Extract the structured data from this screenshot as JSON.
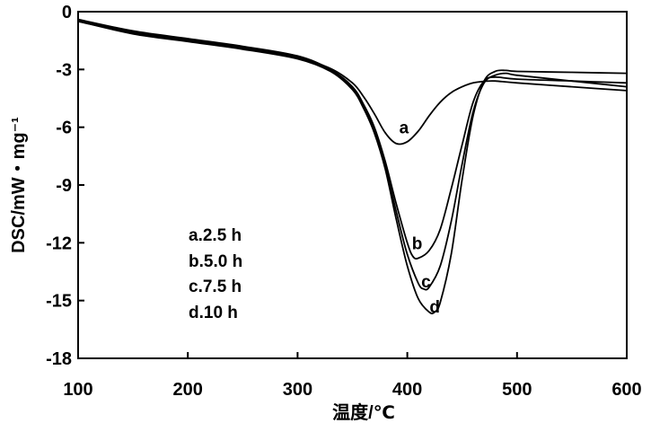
{
  "chart_data": {
    "type": "line",
    "xlabel": "温度/℃",
    "ylabel": "DSC/mW・mg⁻¹",
    "xlim": [
      100,
      600
    ],
    "ylim": [
      -18,
      0
    ],
    "xticks": [
      100,
      200,
      300,
      400,
      500,
      600
    ],
    "yticks": [
      0,
      -3,
      -6,
      -9,
      -12,
      -15,
      -18
    ],
    "xtick_labels": [
      "100",
      "200",
      "300",
      "400",
      "500",
      "600"
    ],
    "ytick_labels": [
      "0",
      "-3",
      "-6",
      "-9",
      "-12",
      "-15",
      "-18"
    ],
    "grid": false,
    "legend_entries": [
      "a.2.5 h",
      "b.5.0 h",
      "c.7.5 h",
      "d.10 h"
    ],
    "series": [
      {
        "label": "a",
        "label_at": [
          397,
          -6.0
        ],
        "x": [
          100,
          150,
          200,
          250,
          300,
          330,
          350,
          360,
          370,
          380,
          390,
          400,
          410,
          420,
          430,
          440,
          450,
          460,
          470,
          480,
          500,
          550,
          600
        ],
        "y": [
          -0.5,
          -1.1,
          -1.5,
          -1.9,
          -2.4,
          -2.95,
          -3.7,
          -4.4,
          -5.3,
          -6.3,
          -6.85,
          -6.75,
          -6.2,
          -5.4,
          -4.7,
          -4.2,
          -3.9,
          -3.7,
          -3.62,
          -3.6,
          -3.7,
          -3.9,
          -4.1
        ]
      },
      {
        "label": "b",
        "label_at": [
          409,
          -12.0
        ],
        "x": [
          100,
          150,
          200,
          250,
          300,
          330,
          350,
          360,
          370,
          380,
          390,
          400,
          405,
          410,
          420,
          430,
          440,
          450,
          460,
          470,
          480,
          500,
          550,
          600
        ],
        "y": [
          -0.4,
          -1.0,
          -1.4,
          -1.8,
          -2.3,
          -3.0,
          -3.9,
          -4.8,
          -6.0,
          -7.8,
          -10.0,
          -12.0,
          -12.7,
          -12.8,
          -12.4,
          -11.3,
          -9.2,
          -6.9,
          -4.7,
          -3.6,
          -3.4,
          -3.5,
          -3.6,
          -3.7
        ]
      },
      {
        "label": "c",
        "label_at": [
          417,
          -14.0
        ],
        "x": [
          100,
          150,
          200,
          250,
          300,
          330,
          350,
          360,
          370,
          380,
          390,
          400,
          410,
          415,
          420,
          430,
          440,
          450,
          460,
          470,
          480,
          490,
          500,
          550,
          600
        ],
        "y": [
          -0.45,
          -1.05,
          -1.45,
          -1.85,
          -2.35,
          -3.05,
          -4.0,
          -4.9,
          -6.2,
          -8.0,
          -10.4,
          -12.6,
          -14.1,
          -14.4,
          -14.3,
          -13.2,
          -10.9,
          -7.9,
          -5.2,
          -3.7,
          -3.3,
          -3.2,
          -3.3,
          -3.6,
          -3.9
        ]
      },
      {
        "label": "d",
        "label_at": [
          425,
          -15.3
        ],
        "x": [
          100,
          150,
          200,
          250,
          300,
          330,
          350,
          360,
          370,
          380,
          390,
          400,
          410,
          420,
          425,
          430,
          440,
          450,
          460,
          470,
          480,
          490,
          500,
          550,
          600
        ],
        "y": [
          -0.5,
          -1.15,
          -1.55,
          -1.95,
          -2.45,
          -3.1,
          -4.05,
          -5.0,
          -6.3,
          -8.2,
          -10.8,
          -13.2,
          -14.9,
          -15.6,
          -15.6,
          -15.1,
          -12.6,
          -8.7,
          -5.4,
          -3.6,
          -3.1,
          -3.05,
          -3.1,
          -3.15,
          -3.2
        ]
      }
    ]
  }
}
